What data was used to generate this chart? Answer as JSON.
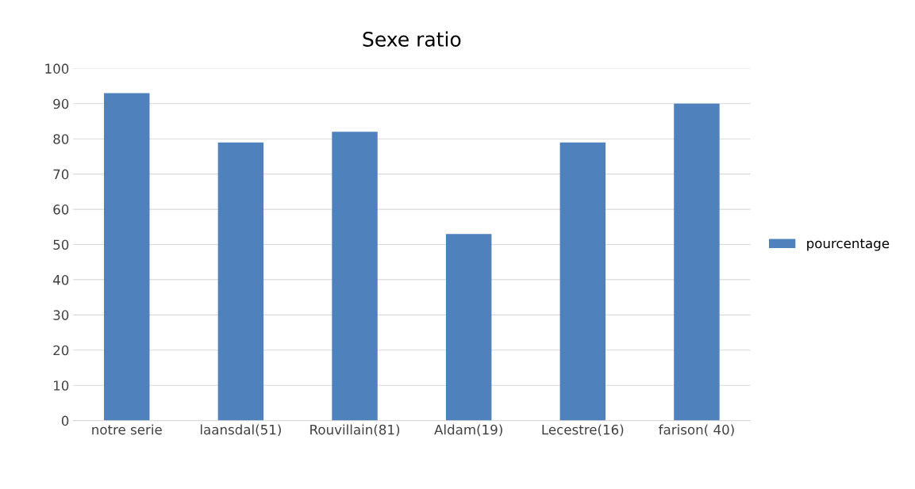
{
  "chart_data": {
    "type": "bar",
    "title": "Sexe ratio",
    "categories": [
      "notre serie",
      "laansdal(51)",
      "Rouvillain(81)",
      "Aldam(19)",
      "Lecestre(16)",
      "farison( 40)"
    ],
    "series": [
      {
        "name": "pourcentage",
        "color": "#4f81bd",
        "values": [
          93,
          79,
          82,
          53,
          79,
          90
        ]
      }
    ],
    "ylim": [
      0,
      100
    ],
    "yticks": [
      0,
      10,
      20,
      30,
      40,
      50,
      60,
      70,
      80,
      90,
      100
    ],
    "grid": "y",
    "legend": "right"
  }
}
